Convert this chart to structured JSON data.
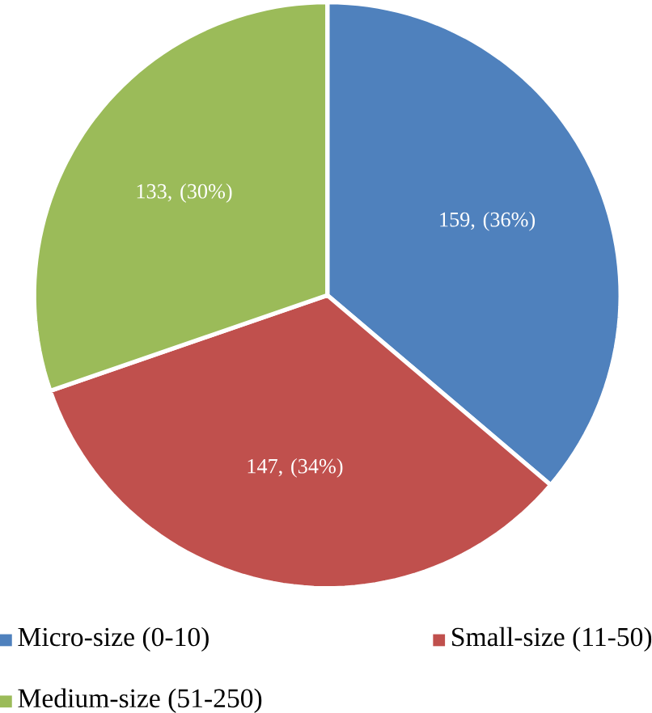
{
  "chart_data": {
    "type": "pie",
    "categories": [
      "Micro-size (0-10)",
      "Small-size (11-50)",
      "Medium-size (51-250)"
    ],
    "values": [
      159,
      147,
      133
    ],
    "colors": [
      "#4f81bd",
      "#c0504d",
      "#9bbb59"
    ],
    "value_labels": [
      "159, (36%)",
      "147, (34%)",
      "133, (30%)"
    ],
    "legend": "bottom"
  }
}
